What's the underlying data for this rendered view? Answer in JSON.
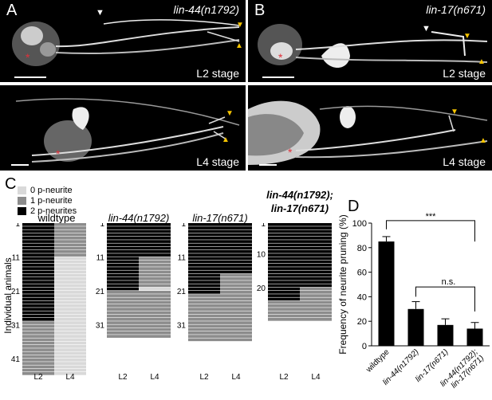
{
  "panels": {
    "A": {
      "label": "A",
      "genotype": "lin-44(n1792)",
      "stage": "L2 stage"
    },
    "B": {
      "label": "B",
      "genotype": "lin-17(n671)",
      "stage": "L2 stage"
    },
    "C_img": {
      "stage": "L4 stage"
    },
    "D_img": {
      "stage": "L4 stage"
    }
  },
  "colors": {
    "zero": "#d9d9d9",
    "one": "#8c8c8c",
    "two": "#000000",
    "arrow_yellow": "#f5c400",
    "asterisk": "#e0303a"
  },
  "panelC": {
    "label": "C",
    "legend": [
      "0 p-neurite",
      "1 p-neurite",
      "2 p-neurites"
    ],
    "ylabel": "Individual animals",
    "xlabels": [
      "L2",
      "L4"
    ],
    "grids": [
      {
        "title": "wildtype",
        "ticks": [
          "1",
          "11",
          "21",
          "31",
          "41"
        ],
        "rows": 45
      },
      {
        "title": "lin-44(n1792)",
        "ticks": [
          "1",
          "11",
          "21",
          "31"
        ],
        "rows": 34
      },
      {
        "title": "lin-17(n671)",
        "ticks": [
          "1",
          "11",
          "21",
          "31"
        ],
        "rows": 35
      },
      {
        "title": "lin-44(n1792); lin-17(n671)",
        "ticks": [
          "1",
          "10",
          "20"
        ],
        "rows": 29
      }
    ]
  },
  "panelD": {
    "label": "D",
    "significance": [
      "***",
      "n.s."
    ]
  },
  "chart_data": {
    "type": "bar",
    "categories": [
      "wildtype",
      "lin-44(n1792)",
      "lin-17(n671)",
      "lin-44(n1792); lin-17(n671)"
    ],
    "values": [
      85,
      30,
      17,
      14
    ],
    "errors": [
      4,
      6,
      5,
      5
    ],
    "ylabel": "Frequency of neurite pruning (%)",
    "ylim": [
      0,
      100
    ],
    "yticks": [
      0,
      20,
      40,
      60,
      80,
      100
    ]
  }
}
